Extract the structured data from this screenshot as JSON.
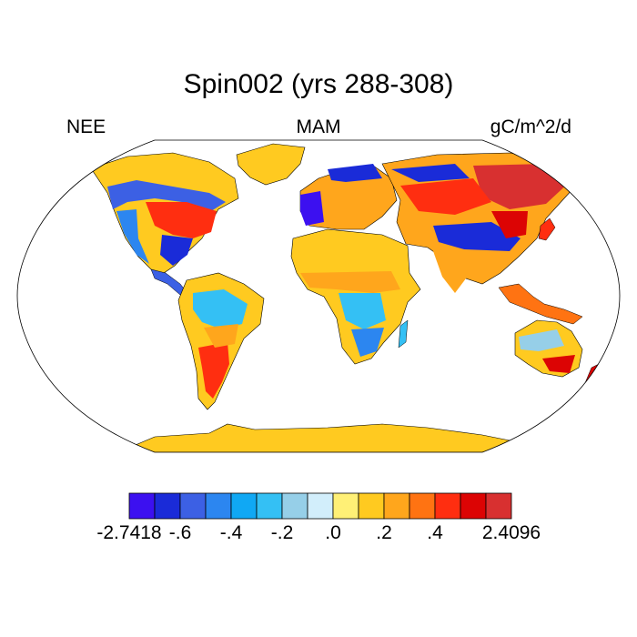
{
  "title": "Spin002 (yrs 288-308)",
  "left_label": "NEE",
  "center_label": "MAM",
  "right_label": "gC/m^2/d",
  "colorbar": {
    "colors": [
      "#3c10f0",
      "#1a2bd8",
      "#3c60e4",
      "#2c86f0",
      "#10a8f4",
      "#34c0f4",
      "#96cfe8",
      "#d2eefb",
      "#fff076",
      "#ffca20",
      "#ffa61c",
      "#ff7312",
      "#ff2e10",
      "#dc0404",
      "#d83030"
    ],
    "labels": [
      {
        "text": "-2.7418",
        "slot": 0
      },
      {
        "text": "-.6",
        "slot": 2
      },
      {
        "text": "-.4",
        "slot": 4
      },
      {
        "text": "-.2",
        "slot": 6
      },
      {
        "text": ".0",
        "slot": 8
      },
      {
        "text": ".2",
        "slot": 10
      },
      {
        "text": ".4",
        "slot": 12
      },
      {
        "text": "2.4096",
        "slot": 15
      }
    ]
  },
  "map": {
    "projection": "Robinson",
    "ocean_color": "#ffffff",
    "coastline_color": "#000000"
  }
}
